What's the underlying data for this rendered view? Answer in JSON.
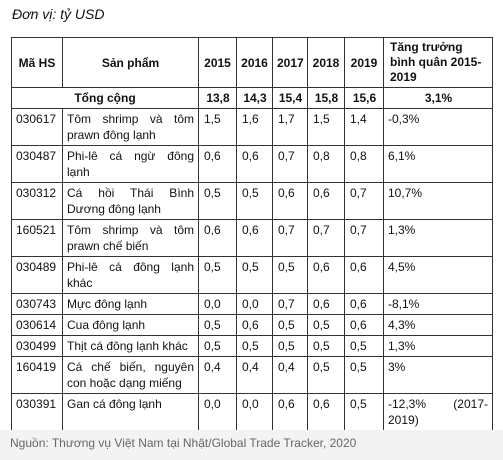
{
  "unit_note": "Đơn vị: tỷ USD",
  "table": {
    "header": [
      "Mã HS",
      "Sản phẩm",
      "2015",
      "2016",
      "2017",
      "2018",
      "2019",
      "Tăng trưởng bình quân 2015-2019"
    ],
    "total": [
      "Tổng cộng",
      "13,8",
      "14,3",
      "15,4",
      "15,8",
      "15,6",
      "3,1%"
    ],
    "rows": [
      [
        "030617",
        "Tôm shrimp và tôm prawn đông lạnh",
        "1,5",
        "1,6",
        "1,7",
        "1,5",
        "1,4",
        "-0,3%"
      ],
      [
        "030487",
        "Phi-lê cá ngừ đông lạnh",
        "0,6",
        "0,6",
        "0,7",
        "0,8",
        "0,8",
        "6,1%"
      ],
      [
        "030312",
        "Cá hồi Thái Bình Dương đông lạnh",
        "0,5",
        "0,5",
        "0,6",
        "0,6",
        "0,7",
        "10,7%"
      ],
      [
        "160521",
        "Tôm shrimp và tôm prawn chế biến",
        "0,6",
        "0,6",
        "0,7",
        "0,7",
        "0,7",
        "1,3%"
      ],
      [
        "030489",
        "Phi-lê cá đông lạnh khác",
        "0,5",
        "0,5",
        "0,5",
        "0,6",
        "0,6",
        "4,5%"
      ],
      [
        "030743",
        "Mực đông lạnh",
        "0,0",
        "0,0",
        "0,7",
        "0,6",
        "0,6",
        "-8,1%"
      ],
      [
        "030614",
        "Cua đông lạnh",
        "0,5",
        "0,6",
        "0,5",
        "0,5",
        "0,6",
        "4,3%"
      ],
      [
        "030499",
        "Thịt cá đông lạnh khác",
        "0,5",
        "0,5",
        "0,5",
        "0,5",
        "0,5",
        "1,3%"
      ],
      [
        "160419",
        "Cá chế biến, nguyên con hoặc dạng miếng",
        "0,4",
        "0,4",
        "0,4",
        "0,5",
        "0,5",
        "3%"
      ],
      [
        "030391",
        "Gan cá đông lạnh",
        "0,0",
        "0,0",
        "0,6",
        "0,6",
        "0,5",
        "-12,3% (2017-2019)"
      ]
    ]
  },
  "source": "Nguồn: Thương vụ Việt Nam tại Nhật/Global Trade Tracker, 2020"
}
